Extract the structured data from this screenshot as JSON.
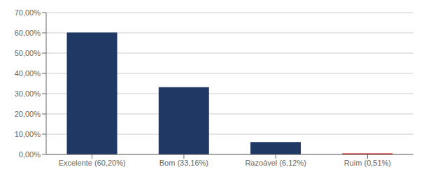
{
  "chart_data": {
    "type": "bar",
    "categories": [
      "Excelente (60,20%)",
      "Bom (33,16%)",
      "Razoável (6,12%)",
      "Ruim (0,51%)"
    ],
    "values": [
      0.602,
      0.3316,
      0.0612,
      0.0051
    ],
    "colors": [
      "#1F3864",
      "#1F3864",
      "#1F3864",
      "#C00000"
    ],
    "ylim": [
      0,
      0.7
    ],
    "yticks": [
      {
        "value": 0.0,
        "label": "0,00%"
      },
      {
        "value": 0.1,
        "label": "10,00%"
      },
      {
        "value": 0.2,
        "label": "20,00%"
      },
      {
        "value": 0.3,
        "label": "30,00%"
      },
      {
        "value": 0.4,
        "label": "40,00%"
      },
      {
        "value": 0.5,
        "label": "50,00%"
      },
      {
        "value": 0.6,
        "label": "60,00%"
      },
      {
        "value": 0.7,
        "label": "70,00%"
      }
    ],
    "grid": true
  }
}
